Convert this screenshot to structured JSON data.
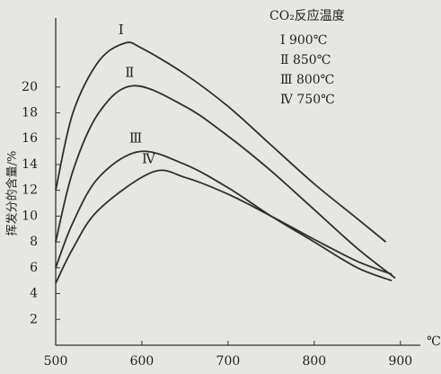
{
  "chart_data": {
    "type": "line",
    "y_label": "挥发分的含量/%",
    "x_unit": "℃",
    "legend_title": "CO₂反应温度",
    "xlim": [
      500,
      920
    ],
    "xticks": [
      500,
      600,
      700,
      800,
      900
    ],
    "ylim": [
      0,
      25
    ],
    "yticks": [
      2,
      4,
      6,
      8,
      10,
      12,
      14,
      16,
      18,
      20
    ],
    "series": [
      {
        "name": "Ⅰ 900℃",
        "label": "Ⅰ",
        "color": "#2e2e2e",
        "x": [
          500,
          520,
          550,
          580,
          600,
          650,
          700,
          750,
          800,
          850,
          883
        ],
        "values": [
          12,
          18,
          22,
          23.4,
          23,
          21,
          18.5,
          15.5,
          12.5,
          9.8,
          8
        ]
      },
      {
        "name": "Ⅱ 850℃",
        "label": "Ⅱ",
        "color": "#2e2e2e",
        "x": [
          500,
          520,
          550,
          590,
          650,
          700,
          750,
          800,
          850,
          894
        ],
        "values": [
          8,
          13.5,
          18,
          20.1,
          18.5,
          16.2,
          13.5,
          10.5,
          7.5,
          5.2
        ]
      },
      {
        "name": "Ⅲ 800℃",
        "label": "Ⅲ",
        "color": "#2e2e2e",
        "x": [
          500,
          520,
          550,
          597,
          650,
          700,
          750,
          800,
          850,
          890
        ],
        "values": [
          6,
          9.5,
          13,
          15,
          14,
          12.2,
          10,
          8,
          6,
          5
        ]
      },
      {
        "name": "Ⅳ 750℃",
        "label": "Ⅳ",
        "color": "#2e2e2e",
        "x": [
          500,
          520,
          550,
          612,
          650,
          700,
          750,
          800,
          850,
          890
        ],
        "values": [
          4.8,
          7.5,
          10.5,
          13.4,
          13,
          11.7,
          10,
          8.2,
          6.5,
          5.5
        ]
      }
    ]
  }
}
